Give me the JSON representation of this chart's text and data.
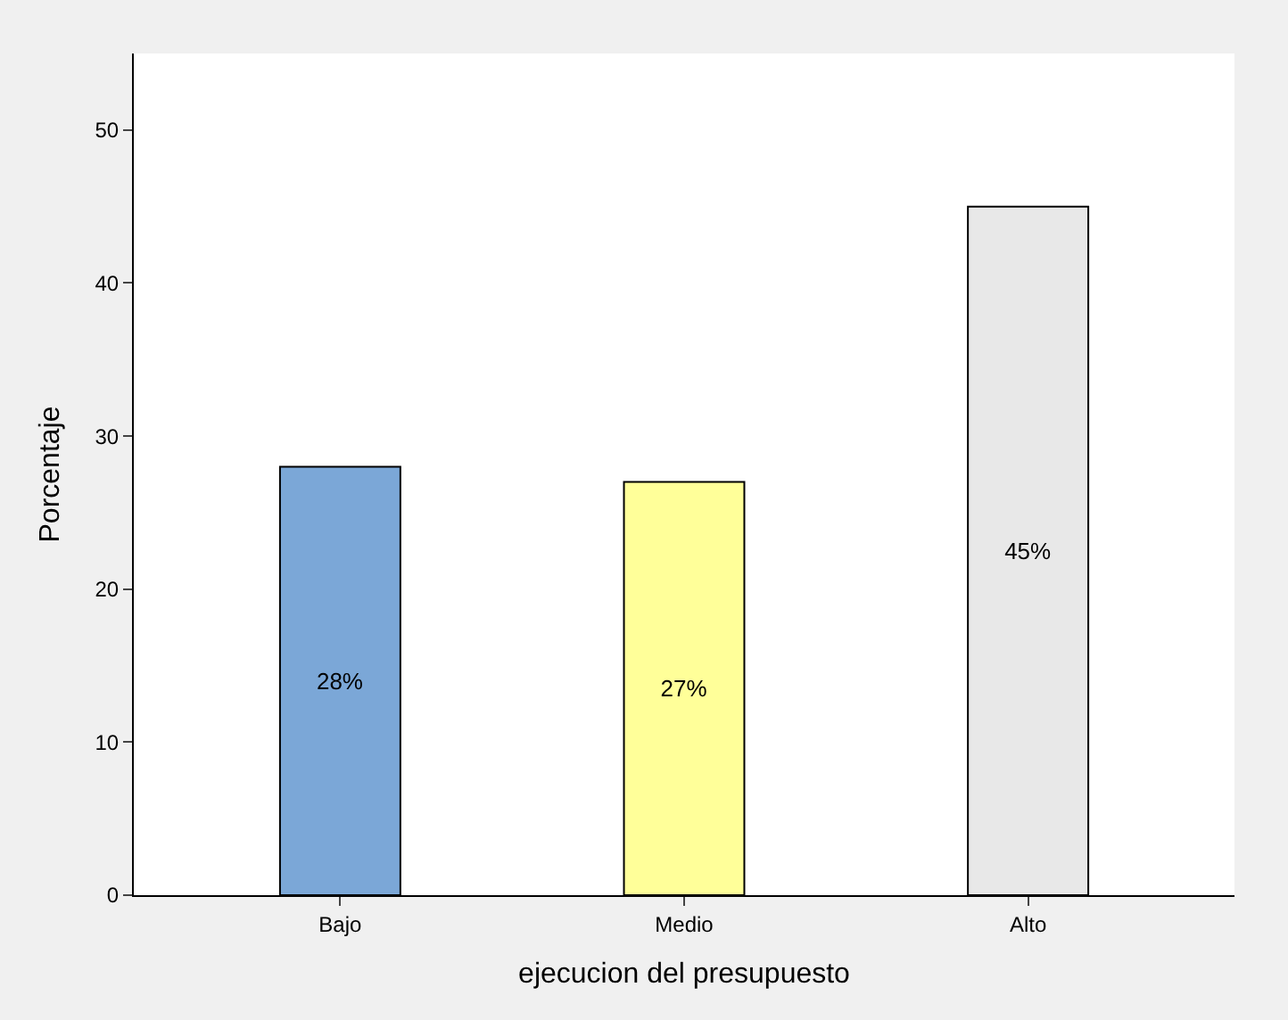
{
  "chart_data": {
    "type": "bar",
    "xlabel": "ejecucion del presupuesto",
    "ylabel": "Porcentaje",
    "categories": [
      "Bajo",
      "Medio",
      "Alto"
    ],
    "values": [
      28,
      27,
      45
    ],
    "colors": [
      "#7ba7d7",
      "#ffff99",
      "#e8e8e8"
    ],
    "value_labels": [
      "28%",
      "27%",
      "45%"
    ],
    "ylim": [
      0,
      55
    ],
    "yticks": [
      0,
      10,
      20,
      30,
      40,
      50
    ],
    "legend": false
  }
}
